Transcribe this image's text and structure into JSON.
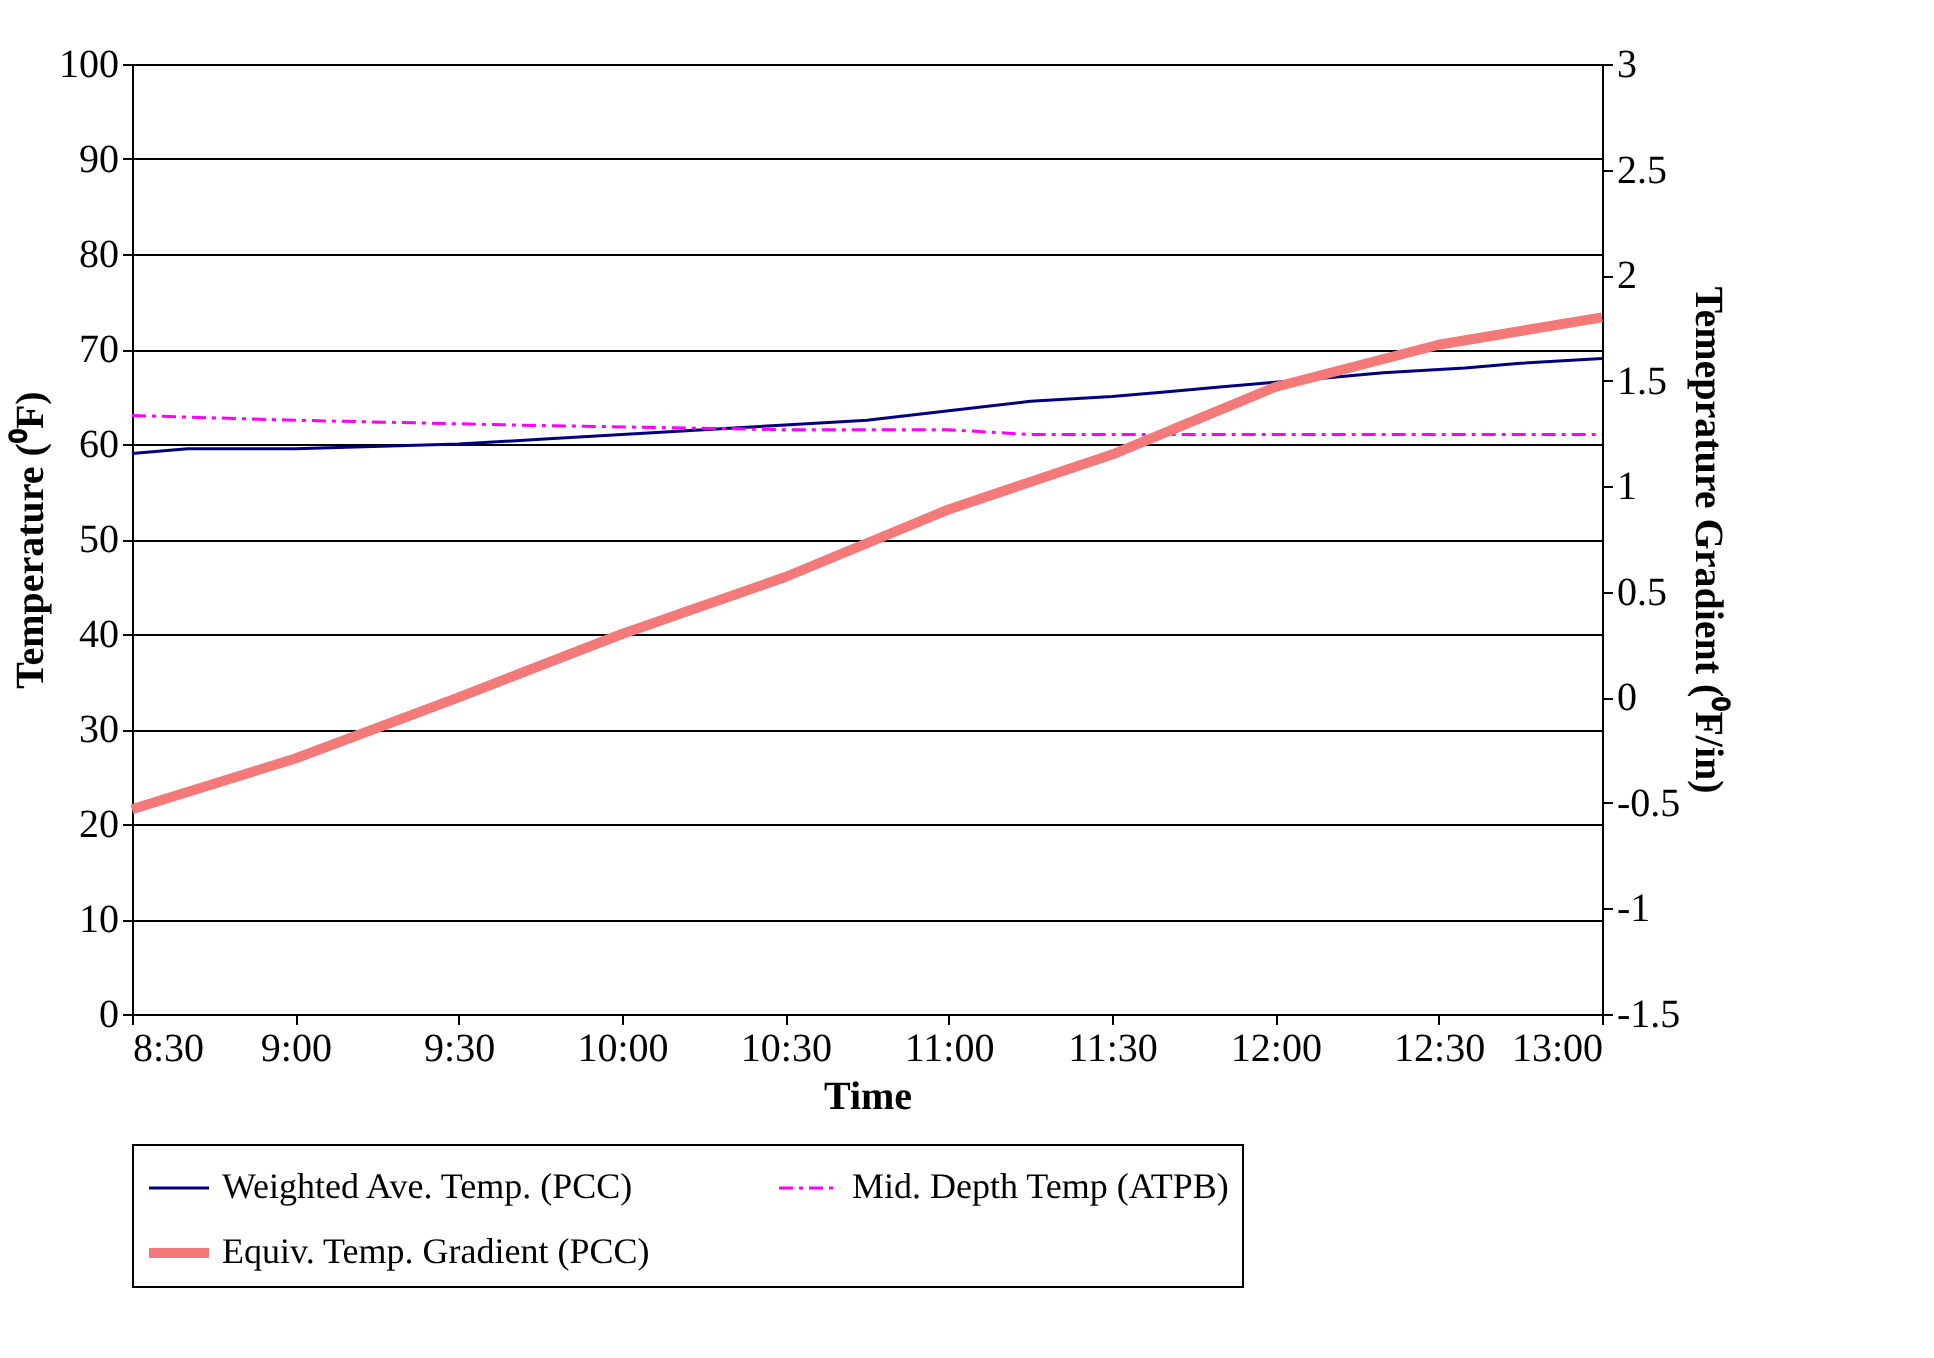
{
  "chart_data": {
    "type": "line",
    "xlabel": "Time",
    "ylabel": "Temperature (⁰F)",
    "y2label": "Temeprature Gradient (⁰F/in)",
    "xlim": [
      8.5,
      13
    ],
    "xticks": [
      {
        "value": 8.5,
        "label": "8:30"
      },
      {
        "value": 9,
        "label": "9:00"
      },
      {
        "value": 9.5,
        "label": "9:30"
      },
      {
        "value": 10,
        "label": "10:00"
      },
      {
        "value": 10.5,
        "label": "10:30"
      },
      {
        "value": 11,
        "label": "11:00"
      },
      {
        "value": 11.5,
        "label": "11:30"
      },
      {
        "value": 12,
        "label": "12:00"
      },
      {
        "value": 12.5,
        "label": "12:30"
      },
      {
        "value": 13,
        "label": "13:00"
      }
    ],
    "ylim": [
      0,
      100
    ],
    "yticks": [
      0,
      10,
      20,
      30,
      40,
      50,
      60,
      70,
      80,
      90,
      100
    ],
    "y2lim": [
      -1.5,
      3
    ],
    "y2ticks": [
      -1.5,
      -1,
      -0.5,
      0,
      0.5,
      1,
      1.5,
      2,
      2.5,
      3
    ],
    "grid": "y",
    "legend": "bottom",
    "marker": "none",
    "series": [
      {
        "name": "Weighted Ave. Temp. (PCC)",
        "color": "#000080",
        "line_style": "solid",
        "x": [
          8.5,
          8.67,
          9,
          9.5,
          9.75,
          10,
          10.25,
          10.5,
          10.75,
          11,
          11.25,
          11.5,
          11.67,
          11.83,
          12,
          12.17,
          12.33,
          12.58,
          12.75,
          13
        ],
        "values": [
          59,
          59.5,
          59.5,
          60,
          60.5,
          61,
          61.5,
          62,
          62.5,
          63.5,
          64.5,
          65,
          65.5,
          66,
          66.5,
          67,
          67.5,
          68,
          68.5,
          69
        ]
      },
      {
        "name": "Mid. Depth Temp (ATPB)",
        "color": "#ff00ff",
        "line_style": "dashed",
        "x": [
          8.5,
          9,
          9.67,
          10.5,
          11,
          11.25,
          12,
          13
        ],
        "values": [
          63,
          62.5,
          62,
          61.5,
          61.5,
          61,
          61,
          61
        ]
      },
      {
        "name": "Equiv. Temp. Gradient (PCC)",
        "color": "#f47a7a",
        "line_style": "solid",
        "axis": "y2",
        "x": [
          8.5,
          9,
          9.5,
          10,
          10.5,
          11,
          11.5,
          12,
          12.5,
          13
        ],
        "values": [
          -0.53,
          -0.29,
          0,
          0.3,
          0.57,
          0.89,
          1.15,
          1.47,
          1.67,
          1.8
        ]
      }
    ]
  }
}
